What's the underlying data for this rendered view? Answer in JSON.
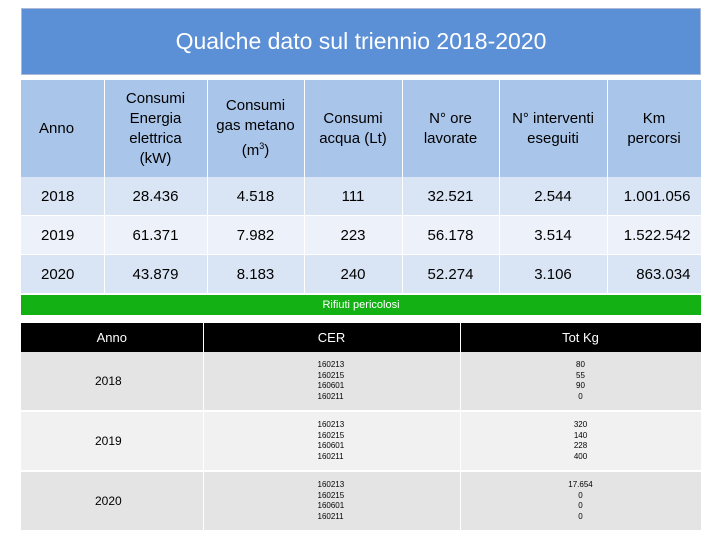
{
  "title": "Qualche dato sul triennio 2018-2020",
  "consumi_table": {
    "headers": {
      "anno": "Anno",
      "energia": [
        "Consumi",
        "Energia",
        "elettrica",
        "(kW)"
      ],
      "gas": [
        "Consumi",
        "gas metano",
        "(m",
        "3",
        ")"
      ],
      "acqua": [
        "Consumi",
        "acqua (Lt)"
      ],
      "ore": [
        "N° ore",
        "lavorate"
      ],
      "interventi": [
        "N° interventi",
        "eseguiti"
      ],
      "km": [
        "Km",
        "percorsi"
      ]
    },
    "rows": [
      {
        "anno": "2018",
        "energia": "28.436",
        "gas": "4.518",
        "acqua": "111",
        "ore": "32.521",
        "interventi": "2.544",
        "km": "1.001.056"
      },
      {
        "anno": "2019",
        "energia": "61.371",
        "gas": "7.982",
        "acqua": "223",
        "ore": "56.178",
        "interventi": "3.514",
        "km": "1.522.542"
      },
      {
        "anno": "2020",
        "energia": "43.879",
        "gas": "8.183",
        "acqua": "240",
        "ore": "52.274",
        "interventi": "3.106",
        "km": "863.034"
      }
    ]
  },
  "rifiuti_banner": "Rifiuti pericolosi",
  "rifiuti_table": {
    "headers": {
      "anno": "Anno",
      "cer": "CER",
      "tot": "Tot Kg"
    },
    "rows": [
      {
        "anno": "2018",
        "cer": [
          "160213",
          "160215",
          "160601",
          "160211"
        ],
        "kg": [
          "80",
          "55",
          "90",
          "0"
        ]
      },
      {
        "anno": "2019",
        "cer": [
          "160213",
          "160215",
          "160601",
          "160211"
        ],
        "kg": [
          "320",
          "140",
          "228",
          "400"
        ]
      },
      {
        "anno": "2020",
        "cer": [
          "160213",
          "160215",
          "160601",
          "160211"
        ],
        "kg": [
          "17.654",
          "0",
          "0",
          "0"
        ]
      }
    ]
  },
  "colors": {
    "title_bg": "#5b8fd6",
    "header_bg": "#a9c5ea",
    "row_dark": "#d9e4f4",
    "row_light": "#edf2fa",
    "banner_green": "#13b113",
    "table2_header": "#000000"
  }
}
